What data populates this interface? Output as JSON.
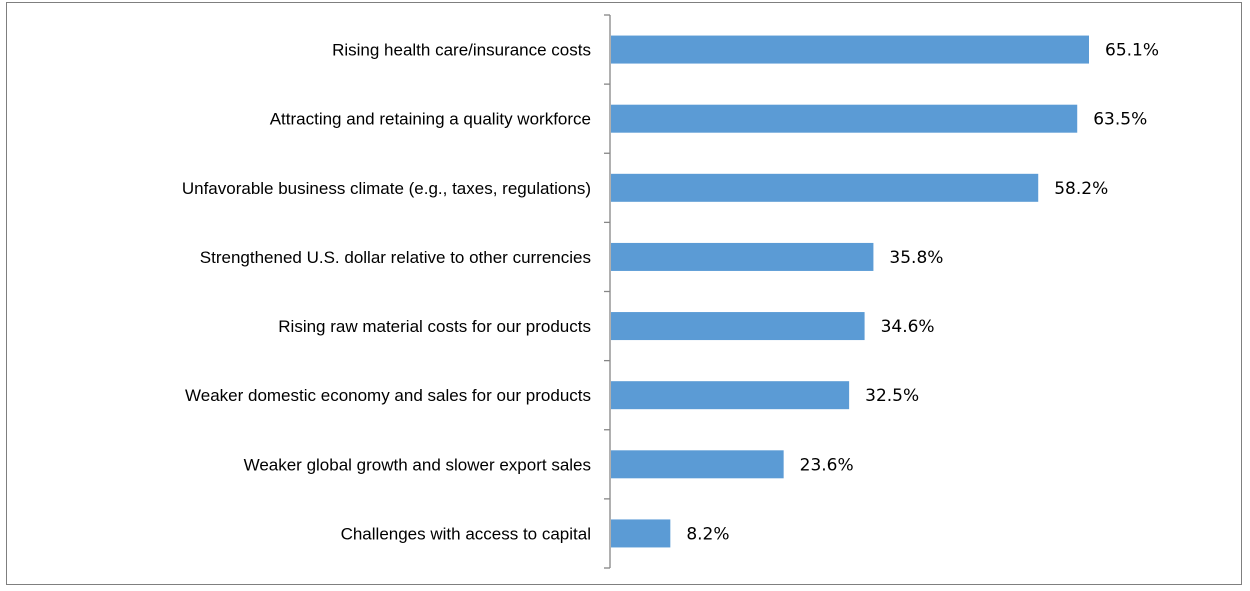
{
  "chart_data": {
    "type": "bar",
    "orientation": "horizontal",
    "categories": [
      "Rising health care/insurance costs",
      "Attracting and retaining a quality workforce",
      "Unfavorable business climate (e.g., taxes, regulations)",
      "Strengthened U.S. dollar relative to other currencies",
      "Rising raw material costs for our products",
      "Weaker domestic economy and sales for our products",
      "Weaker global growth and slower export sales",
      "Challenges with access to capital"
    ],
    "values": [
      65.1,
      63.5,
      58.2,
      35.8,
      34.6,
      32.5,
      23.6,
      8.2
    ],
    "value_labels": [
      "65.1%",
      "63.5%",
      "58.2%",
      "35.8%",
      "34.6%",
      "32.5%",
      "23.6%",
      "8.2%"
    ],
    "title": "",
    "xlabel": "",
    "ylabel": "",
    "xlim": [
      0,
      70
    ],
    "grid": false,
    "legend": "none",
    "bar_color": "#5B9BD5",
    "axis_color": "#868686",
    "border_color": "#7f7f7f"
  }
}
